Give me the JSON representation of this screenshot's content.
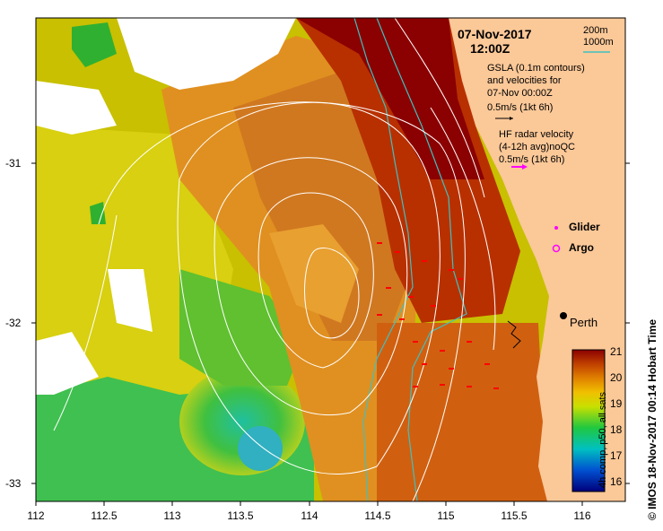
{
  "header": {
    "date": "07-Nov-2017",
    "time": "12:00Z"
  },
  "depth_legend": {
    "contour_200": "200m",
    "contour_1000": "1000m"
  },
  "gsla_legend": {
    "line1": "GSLA (0.1m contours)",
    "line2": "and velocities for",
    "line3": "07-Nov 00:00Z",
    "line4": "0.5m/s (1kt 6h)"
  },
  "hf_legend": {
    "line1": "HF radar velocity",
    "line2": "(4-12h avg)noQC",
    "line3": "0.5m/s (1kt 6h)"
  },
  "markers": {
    "glider": "Glider",
    "argo": "Argo",
    "city": "Perth"
  },
  "axes": {
    "x_ticks": [
      "112",
      "112.5",
      "113",
      "113.5",
      "114",
      "114.5",
      "115",
      "115.5",
      "116"
    ],
    "y_ticks": [
      "-31",
      "-32",
      "-33"
    ]
  },
  "colorbar": {
    "ticks": [
      "21",
      "20",
      "19",
      "18",
      "17",
      "16"
    ],
    "title": "4h comp, p50, all sats"
  },
  "credit": "© IMOS 18-Nov-2017 00:14 Hobart Time",
  "colors": {
    "land": "#fbc898",
    "warm": "#8b0000",
    "contour_200": "#000000",
    "contour_1000": "#40c0c0",
    "hf_arrow": "#ff00ff",
    "gsla_contour": "#ffffff"
  }
}
